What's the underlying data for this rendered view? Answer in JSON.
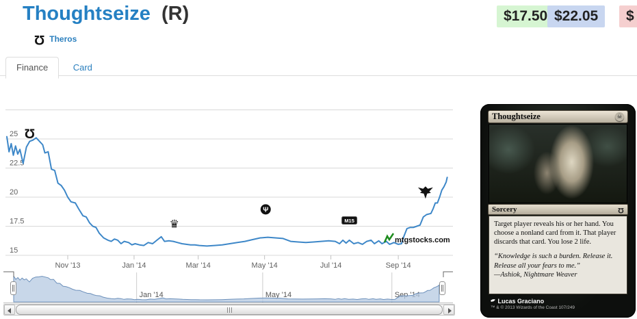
{
  "header": {
    "title": "Thoughtseize",
    "rarity_suffix": "(R)",
    "set_name": "Theros",
    "prices": [
      {
        "label": "$17.50",
        "kind": "low"
      },
      {
        "label": "$22.05",
        "kind": "average"
      },
      {
        "label": "$",
        "kind": "high-clipped"
      }
    ]
  },
  "tabs": [
    {
      "label": "Finance",
      "active": true
    },
    {
      "label": "Card",
      "active": false
    }
  ],
  "chart_data": {
    "type": "line",
    "title": "",
    "xlabel": "",
    "ylabel": "",
    "grid": true,
    "line_color": "#3d87c8",
    "x_range": {
      "start": "2013-09-06",
      "end": "2014-10-20"
    },
    "ylim": [
      15,
      27.5
    ],
    "yticks": [
      15,
      17.5,
      20,
      22.5,
      25
    ],
    "ygrid_prices": [
      15,
      17.5,
      20,
      22.5,
      25,
      27.5
    ],
    "xticks": [
      {
        "date": "2013-11-01",
        "label": "Nov '13"
      },
      {
        "date": "2014-01-01",
        "label": "Jan '14"
      },
      {
        "date": "2014-03-01",
        "label": "Mar '14"
      },
      {
        "date": "2014-05-01",
        "label": "May '14"
      },
      {
        "date": "2014-07-01",
        "label": "Jul '14"
      },
      {
        "date": "2014-09-01",
        "label": "Sep '14"
      }
    ],
    "series": [
      {
        "name": "Price (USD)",
        "points": [
          [
            "2013-09-06",
            25.2
          ],
          [
            "2013-09-08",
            23.9
          ],
          [
            "2013-09-10",
            24.6
          ],
          [
            "2013-09-12",
            23.6
          ],
          [
            "2013-09-14",
            24.4
          ],
          [
            "2013-09-16",
            23.7
          ],
          [
            "2013-09-18",
            24.1
          ],
          [
            "2013-09-21",
            22.9
          ],
          [
            "2013-09-24",
            24.3
          ],
          [
            "2013-09-27",
            24.8
          ],
          [
            "2013-09-30",
            24.9
          ],
          [
            "2013-10-03",
            25.1
          ],
          [
            "2013-10-06",
            24.8
          ],
          [
            "2013-10-09",
            24.5
          ],
          [
            "2013-10-11",
            23.8
          ],
          [
            "2013-10-14",
            23.9
          ],
          [
            "2013-10-17",
            22.4
          ],
          [
            "2013-10-20",
            22.3
          ],
          [
            "2013-10-23",
            21.2
          ],
          [
            "2013-10-26",
            21.0
          ],
          [
            "2013-10-29",
            20.6
          ],
          [
            "2013-11-01",
            20.0
          ],
          [
            "2013-11-04",
            19.6
          ],
          [
            "2013-11-08",
            19.5
          ],
          [
            "2013-11-11",
            19.0
          ],
          [
            "2013-11-15",
            18.4
          ],
          [
            "2013-11-18",
            18.3
          ],
          [
            "2013-11-21",
            17.8
          ],
          [
            "2013-11-24",
            17.5
          ],
          [
            "2013-11-27",
            17.4
          ],
          [
            "2013-11-30",
            16.9
          ],
          [
            "2013-12-04",
            16.5
          ],
          [
            "2013-12-08",
            16.3
          ],
          [
            "2013-12-11",
            16.2
          ],
          [
            "2013-12-14",
            16.4
          ],
          [
            "2013-12-17",
            16.3
          ],
          [
            "2013-12-20",
            16.0
          ],
          [
            "2013-12-23",
            16.2
          ],
          [
            "2013-12-27",
            16.1
          ],
          [
            "2013-12-30",
            15.9
          ],
          [
            "2014-01-02",
            16.0
          ],
          [
            "2014-01-06",
            15.9
          ],
          [
            "2014-01-10",
            15.85
          ],
          [
            "2014-01-14",
            16.1
          ],
          [
            "2014-01-18",
            16.0
          ],
          [
            "2014-01-22",
            16.3
          ],
          [
            "2014-01-26",
            16.6
          ],
          [
            "2014-01-29",
            16.2
          ],
          [
            "2014-02-02",
            16.25
          ],
          [
            "2014-02-06",
            16.2
          ],
          [
            "2014-02-10",
            16.1
          ],
          [
            "2014-02-14",
            16.0
          ],
          [
            "2014-02-18",
            15.95
          ],
          [
            "2014-02-22",
            15.9
          ],
          [
            "2014-02-26",
            15.9
          ],
          [
            "2014-03-02",
            15.85
          ],
          [
            "2014-03-09",
            15.8
          ],
          [
            "2014-03-16",
            15.85
          ],
          [
            "2014-03-23",
            15.9
          ],
          [
            "2014-03-30",
            16.0
          ],
          [
            "2014-04-06",
            16.1
          ],
          [
            "2014-04-13",
            16.2
          ],
          [
            "2014-04-20",
            16.35
          ],
          [
            "2014-04-27",
            16.5
          ],
          [
            "2014-05-04",
            16.55
          ],
          [
            "2014-05-11",
            16.5
          ],
          [
            "2014-05-18",
            16.45
          ],
          [
            "2014-05-25",
            16.2
          ],
          [
            "2014-06-01",
            16.15
          ],
          [
            "2014-06-08",
            16.1
          ],
          [
            "2014-06-15",
            16.15
          ],
          [
            "2014-06-22",
            16.2
          ],
          [
            "2014-06-29",
            16.25
          ],
          [
            "2014-07-05",
            16.2
          ],
          [
            "2014-07-09",
            16.0
          ],
          [
            "2014-07-12",
            16.3
          ],
          [
            "2014-07-15",
            16.05
          ],
          [
            "2014-07-18",
            16.3
          ],
          [
            "2014-07-22",
            16.0
          ],
          [
            "2014-07-26",
            16.1
          ],
          [
            "2014-07-30",
            15.95
          ],
          [
            "2014-08-03",
            16.2
          ],
          [
            "2014-08-07",
            16.3
          ],
          [
            "2014-08-10",
            16.0
          ],
          [
            "2014-08-14",
            16.25
          ],
          [
            "2014-08-17",
            16.0
          ],
          [
            "2014-08-21",
            16.2
          ],
          [
            "2014-08-24",
            15.95
          ],
          [
            "2014-08-28",
            16.1
          ],
          [
            "2014-09-01",
            15.95
          ],
          [
            "2014-09-04",
            16.0
          ],
          [
            "2014-09-06",
            16.6
          ],
          [
            "2014-09-09",
            17.3
          ],
          [
            "2014-09-12",
            17.4
          ],
          [
            "2014-09-15",
            17.4
          ],
          [
            "2014-09-18",
            17.5
          ],
          [
            "2014-09-21",
            17.6
          ],
          [
            "2014-09-24",
            18.3
          ],
          [
            "2014-09-27",
            18.5
          ],
          [
            "2014-10-01",
            18.6
          ],
          [
            "2014-10-03",
            19.0
          ],
          [
            "2014-10-05",
            19.5
          ],
          [
            "2014-10-07",
            19.5
          ],
          [
            "2014-10-09",
            20.0
          ],
          [
            "2014-10-11",
            20.6
          ],
          [
            "2014-10-13",
            20.9
          ],
          [
            "2014-10-15",
            21.3
          ],
          [
            "2014-10-16",
            21.7
          ]
        ]
      }
    ],
    "events": [
      {
        "icon": "theros-icon",
        "set": "Theros",
        "date": "2013-09-27",
        "y_price": 25.5
      },
      {
        "icon": "born-of-the-gods-icon",
        "set": "Born of the Gods",
        "date": "2014-02-07",
        "y_price": 17.75
      },
      {
        "icon": "journey-into-nyx-icon",
        "set": "Journey into Nyx",
        "date": "2014-05-02",
        "y_price": 18.95
      },
      {
        "icon": "m15-icon",
        "set": "Magic 2015",
        "date": "2014-07-18",
        "y_price": 18.0
      },
      {
        "icon": "khans-of-tarkir-icon",
        "set": "Khans of Tarkir",
        "date": "2014-09-26",
        "y_price": 20.4
      }
    ],
    "watermark": "mtgstocks.com",
    "legend": false,
    "navigator": {
      "xticks": [
        {
          "date": "2014-01-01",
          "label": "Jan '14"
        },
        {
          "date": "2014-05-01",
          "label": "May '14"
        },
        {
          "date": "2014-09-01",
          "label": "Sep '14"
        }
      ],
      "area_fill": "#b6c9e2",
      "area_line": "#6b8fba"
    }
  },
  "card": {
    "name": "Thoughtseize",
    "mana_cost": "B",
    "type_line": "Sorcery",
    "rules_text": "Target player reveals his or her hand. You choose a nonland card from it. That player discards that card. You lose 2 life.",
    "flavor_text": "“Knowledge is such a burden. Release it. Release all your fears to me.”",
    "flavor_attribution": "—Ashiok, Nightmare Weaver",
    "artist": "Lucas Graciano",
    "collector_info": "™ & © 2013 Wizards of the Coast 107/249"
  }
}
